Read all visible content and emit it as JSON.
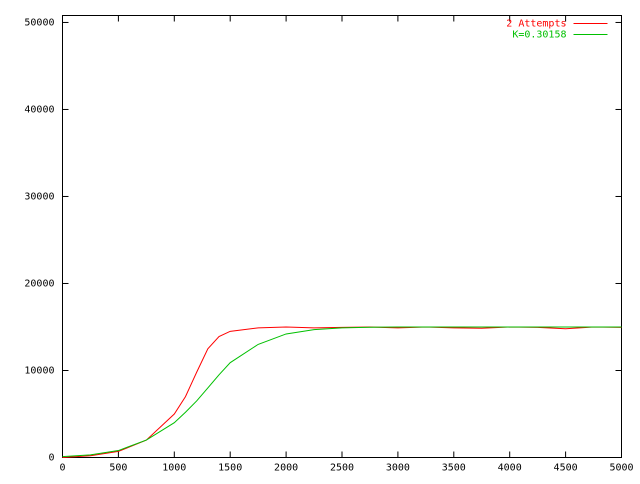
{
  "chart_data": {
    "type": "line",
    "x": [
      0,
      250,
      500,
      750,
      1000,
      1100,
      1200,
      1300,
      1400,
      1500,
      1750,
      2000,
      2250,
      2500,
      2750,
      3000,
      3250,
      3500,
      3750,
      4000,
      4250,
      4500,
      4750,
      5000
    ],
    "series": [
      {
        "name": "2 Attempts",
        "color": "#ff0000",
        "values": [
          0,
          200,
          700,
          2000,
          5000,
          7000,
          9800,
          12500,
          13900,
          14500,
          14900,
          15000,
          14900,
          14950,
          15000,
          14900,
          15000,
          14900,
          14850,
          15000,
          14950,
          14800,
          15000,
          14950
        ]
      },
      {
        "name": "K=0.30158",
        "color": "#00c000",
        "values": [
          100,
          300,
          800,
          2000,
          4000,
          5200,
          6500,
          8000,
          9500,
          10900,
          13000,
          14200,
          14700,
          14900,
          14970,
          15000,
          15000,
          15000,
          15000,
          15000,
          15000,
          15000,
          15000,
          15000
        ]
      }
    ],
    "xlim": [
      0,
      5000
    ],
    "xticks": [
      0,
      500,
      1000,
      1500,
      2000,
      2500,
      3000,
      3500,
      4000,
      4500,
      5000
    ],
    "ylim": [
      0,
      50800
    ],
    "yticks": [
      0,
      10000,
      20000,
      30000,
      40000,
      50000
    ],
    "grid": false,
    "legend": "top-right"
  }
}
